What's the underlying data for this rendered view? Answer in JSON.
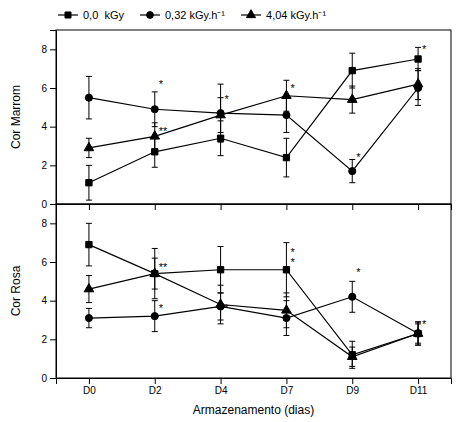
{
  "chart_data": [
    {
      "type": "line",
      "ylabel": "Cor Marrom",
      "categories": [
        null,
        null,
        null,
        null,
        null,
        null
      ],
      "ylim": [
        0,
        9
      ],
      "yticks": [
        0,
        2,
        4,
        6,
        8
      ],
      "legend": "upper left",
      "series": [
        {
          "name": "0,0  kGy",
          "color": "black",
          "marker": "square",
          "line_style": "solid",
          "values": [
            1.1,
            2.7,
            3.4,
            2.4,
            6.9,
            7.5
          ],
          "errors": [
            0.9,
            0.8,
            0.9,
            1.0,
            0.9,
            0.6
          ]
        },
        {
          "name": "0,32 kGy.h⁻¹",
          "color": "black",
          "marker": "circle",
          "line_style": "solid",
          "values": [
            5.5,
            4.9,
            4.7,
            4.6,
            1.7,
            6.0
          ],
          "errors": [
            1.1,
            0.9,
            1.5,
            0.9,
            0.6,
            0.9
          ]
        },
        {
          "name": "4,04 kGy.h⁻¹",
          "color": "black",
          "marker": "triangle",
          "line_style": "solid",
          "values": [
            2.9,
            3.5,
            4.6,
            5.6,
            5.4,
            6.2
          ],
          "errors": [
            0.5,
            0.7,
            0.9,
            0.8,
            0.7,
            0.8
          ]
        }
      ],
      "annotations": [
        {
          "x": 1,
          "y": 6.0,
          "text": "*"
        },
        {
          "x": 1,
          "y": 3.55,
          "text": "**"
        },
        {
          "x": 2,
          "y": 5.2,
          "text": "*"
        },
        {
          "x": 3,
          "y": 5.8,
          "text": "*"
        },
        {
          "x": 4,
          "y": 2.2,
          "text": "*"
        },
        {
          "x": 5,
          "y": 7.8,
          "text": "*"
        }
      ]
    },
    {
      "type": "line",
      "ylabel": "Cor Rosa",
      "xlabel": "Armazenamento (dias)",
      "categories": [
        "D0",
        "D2",
        "D4",
        "D7",
        "D9",
        "D11"
      ],
      "ylim": [
        0,
        9
      ],
      "yticks": [
        0,
        2,
        4,
        6,
        8
      ],
      "series": [
        {
          "color": "black",
          "marker": "square",
          "line_style": "solid",
          "values": [
            6.9,
            5.4,
            5.6,
            5.6,
            1.2,
            2.3
          ],
          "errors": [
            1.1,
            1.3,
            1.2,
            1.4,
            0.7,
            0.6
          ]
        },
        {
          "color": "black",
          "marker": "circle",
          "line_style": "solid",
          "values": [
            3.1,
            3.2,
            3.7,
            3.1,
            4.2,
            2.3
          ],
          "errors": [
            0.5,
            0.8,
            0.7,
            0.9,
            0.8,
            0.5
          ]
        },
        {
          "color": "black",
          "marker": "triangle",
          "line_style": "solid",
          "values": [
            4.6,
            5.4,
            3.8,
            3.5,
            1.1,
            2.3
          ],
          "errors": [
            0.7,
            0.8,
            1.0,
            0.9,
            0.5,
            0.6
          ]
        }
      ],
      "annotations": [
        {
          "x": 1,
          "y": 3.4,
          "text": "*"
        },
        {
          "x": 1,
          "y": 5.55,
          "text": "**"
        },
        {
          "x": 2,
          "y": 3.4,
          "text": "*"
        },
        {
          "x": 3,
          "y": 6.3,
          "text": "*"
        },
        {
          "x": 3,
          "y": 5.8,
          "text": "*"
        },
        {
          "x": 4,
          "y": 5.3,
          "text": "*"
        },
        {
          "x": 5,
          "y": 2.6,
          "text": "*"
        }
      ]
    }
  ]
}
